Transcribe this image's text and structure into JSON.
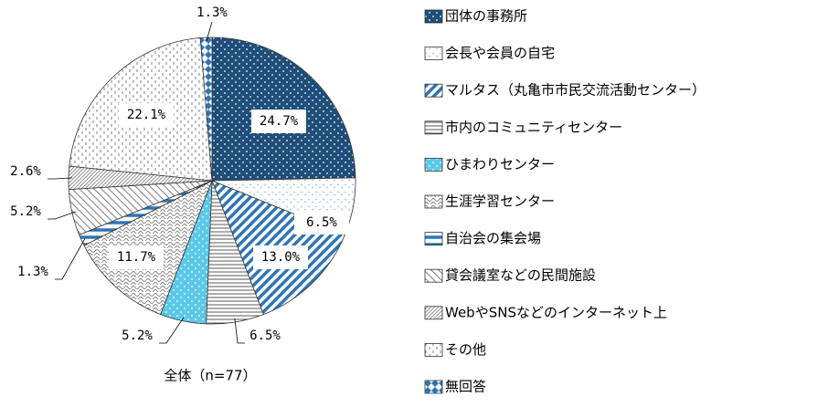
{
  "chart_data": {
    "type": "pie",
    "caption": "全体（n=77）",
    "categories": [
      "団体の事務所",
      "会長や会員の自宅",
      "マルタス（丸亀市市民交流活動センター）",
      "市内のコミュニティセンター",
      "ひまわりセンター",
      "生涯学習センター",
      "自治会の集会場",
      "貸会議室などの民間施設",
      "WebやSNSなどのインターネット上",
      "その他",
      "無回答"
    ],
    "values": [
      24.7,
      6.5,
      13.0,
      6.5,
      5.2,
      11.7,
      1.3,
      5.2,
      2.6,
      22.1,
      1.3
    ],
    "value_labels": [
      "24.7%",
      "6.5%",
      "13.0%",
      "6.5%",
      "5.2%",
      "11.7%",
      "1.3%",
      "5.2%",
      "2.6%",
      "22.1%",
      "1.3%"
    ],
    "colors": [
      "#1f4e79",
      "#9dc3e6",
      "#2e75b6",
      "#595959",
      "#5bc8e8",
      "#7f7f7f",
      "#2e75b6",
      "#7f7f7f",
      "#7f7f7f",
      "#7f7f7f",
      "#2e75b6"
    ]
  }
}
